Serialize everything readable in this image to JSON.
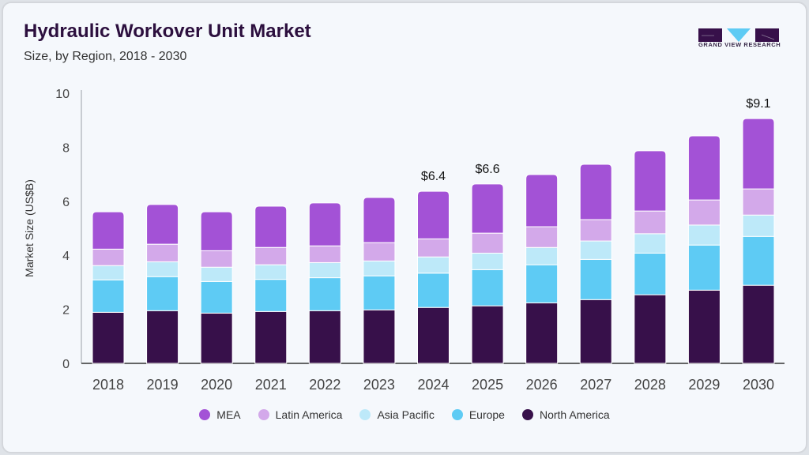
{
  "header": {
    "title": "Hydraulic Workover Unit Market",
    "subtitle": "Size, by Region, 2018 - 2030",
    "logo_text": "GRAND VIEW RESEARCH"
  },
  "chart_data": {
    "type": "bar",
    "stacked": true,
    "title": "Hydraulic Workover Unit Market",
    "subtitle": "Size, by Region, 2018 - 2030",
    "xlabel": "",
    "ylabel": "Market Size (US$B)",
    "ylim": [
      0,
      10
    ],
    "yticks": [
      0,
      2,
      4,
      6,
      8,
      10
    ],
    "grid": false,
    "legend_position": "bottom",
    "categories": [
      "2018",
      "2019",
      "2020",
      "2021",
      "2022",
      "2023",
      "2024",
      "2025",
      "2026",
      "2027",
      "2028",
      "2029",
      "2030"
    ],
    "series": [
      {
        "name": "North America",
        "color": "#37104a",
        "values": [
          1.89,
          1.95,
          1.86,
          1.92,
          1.95,
          1.98,
          2.07,
          2.13,
          2.24,
          2.36,
          2.54,
          2.71,
          2.89
        ]
      },
      {
        "name": "Europe",
        "color": "#5ecbf4",
        "values": [
          1.2,
          1.26,
          1.17,
          1.19,
          1.22,
          1.26,
          1.27,
          1.34,
          1.41,
          1.49,
          1.54,
          1.67,
          1.81
        ]
      },
      {
        "name": "Asia Pacific",
        "color": "#bde9f9",
        "values": [
          0.53,
          0.55,
          0.53,
          0.54,
          0.56,
          0.55,
          0.6,
          0.61,
          0.64,
          0.68,
          0.72,
          0.74,
          0.79
        ]
      },
      {
        "name": "Latin America",
        "color": "#d3a9ea",
        "values": [
          0.61,
          0.65,
          0.61,
          0.64,
          0.62,
          0.68,
          0.67,
          0.74,
          0.77,
          0.79,
          0.84,
          0.93,
          0.97
        ]
      },
      {
        "name": "MEA",
        "color": "#a352d6",
        "values": [
          1.38,
          1.47,
          1.44,
          1.53,
          1.59,
          1.67,
          1.76,
          1.82,
          1.93,
          2.05,
          2.23,
          2.37,
          2.6
        ]
      }
    ],
    "annotations": [
      {
        "category": "2024",
        "label": "$6.4"
      },
      {
        "category": "2025",
        "label": "$6.6"
      },
      {
        "category": "2030",
        "label": "$9.1"
      }
    ],
    "legend_order": [
      "MEA",
      "Latin America",
      "Asia Pacific",
      "Europe",
      "North America"
    ]
  }
}
